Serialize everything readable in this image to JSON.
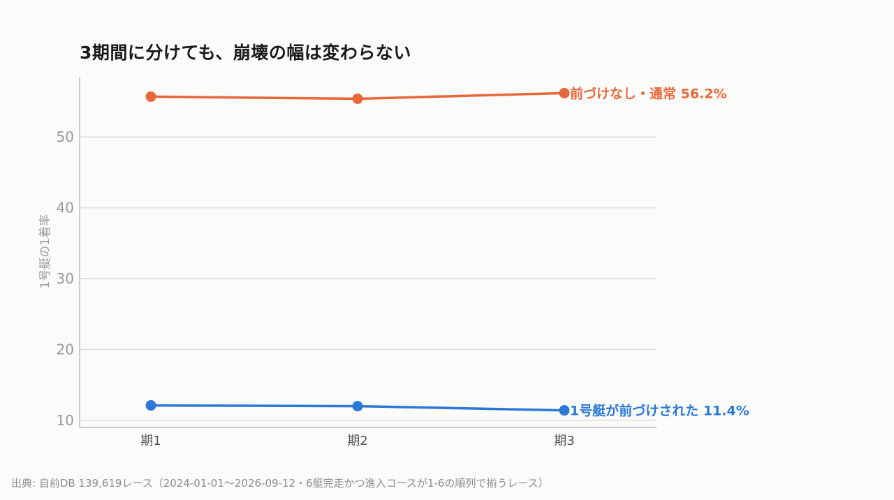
{
  "title": "3期間に分けても、崩壊の幅は変わらない",
  "source": "出典: 自前DB 139,619レース（2024-01-01〜2026-09-12・6艇完走かつ進入コースが1-6の順列で揃うレース）",
  "colors": {
    "series1": "#e8673a",
    "series2": "#2b78d6",
    "grid": "#dcdcdc",
    "axis": "#9a9a9a"
  },
  "chart_data": {
    "type": "line",
    "categories": [
      "期1",
      "期2",
      "期3"
    ],
    "ylabel": "1号艇の1着率",
    "yticks": [
      10,
      20,
      30,
      40,
      50
    ],
    "ylim": [
      9,
      58.5
    ],
    "grid": true,
    "series": [
      {
        "name": "前づけなし・通常",
        "values": [
          55.7,
          55.4,
          56.2
        ],
        "label": "前づけなし・通常 56.2%"
      },
      {
        "name": "1号艇が前づけされた",
        "values": [
          12.1,
          12.0,
          11.4
        ],
        "label": "1号艇が前づけされた 11.4%"
      }
    ]
  }
}
